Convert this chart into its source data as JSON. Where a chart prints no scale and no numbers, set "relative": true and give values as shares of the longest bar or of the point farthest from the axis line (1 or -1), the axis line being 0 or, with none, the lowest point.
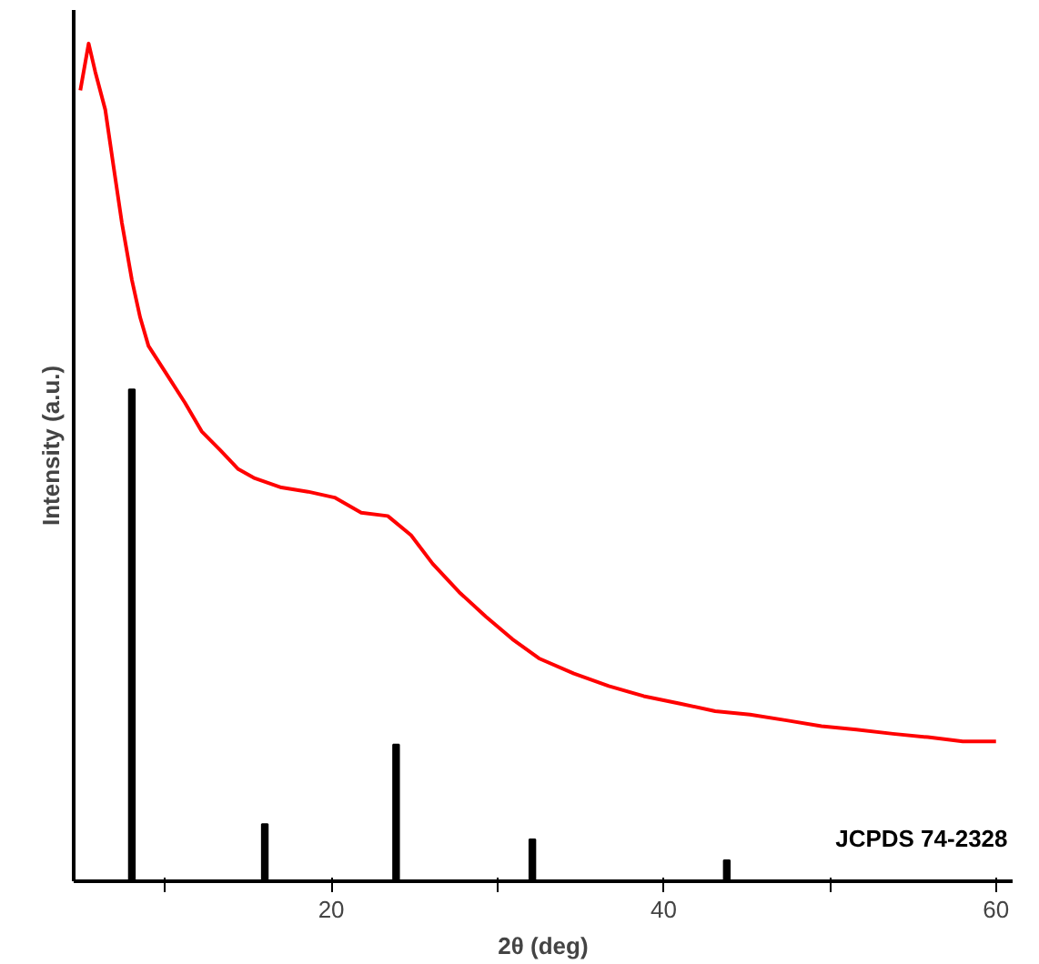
{
  "chart_data": {
    "type": "line",
    "xlabel": "2θ (deg)",
    "ylabel": "Intensity (a.u.)",
    "relative": true,
    "tick_labels": "x",
    "grid": false,
    "xlim": [
      4.5,
      61
    ],
    "xticks": [
      {
        "value": 10,
        "label": null
      },
      20,
      {
        "value": 30,
        "label": null
      },
      40,
      {
        "value": 50,
        "label": null
      },
      60
    ],
    "series": [
      {
        "color": "#ff0000",
        "x": [
          4.9,
          5.4,
          5.8,
          6.4,
          6.9,
          7.4,
          8.0,
          8.5,
          9.0,
          10.1,
          11.2,
          12.2,
          13.3,
          14.4,
          15.4,
          17.0,
          18.6,
          20.2,
          21.8,
          23.4,
          24.8,
          26.1,
          27.7,
          29.3,
          30.9,
          32.5,
          34.6,
          36.7,
          38.8,
          41.0,
          43.1,
          45.2,
          47.4,
          49.5,
          51.6,
          53.8,
          55.9,
          58.0,
          60.0
        ],
        "values": [
          0.944,
          1.0,
          0.966,
          0.921,
          0.853,
          0.786,
          0.718,
          0.673,
          0.639,
          0.605,
          0.571,
          0.537,
          0.515,
          0.492,
          0.481,
          0.47,
          0.465,
          0.458,
          0.44,
          0.436,
          0.413,
          0.379,
          0.345,
          0.316,
          0.289,
          0.266,
          0.248,
          0.233,
          0.221,
          0.212,
          0.203,
          0.199,
          0.192,
          0.185,
          0.181,
          0.176,
          0.172,
          0.167,
          0.167
        ]
      },
      {
        "type": "bar",
        "name": "JCPDS 74-2328",
        "color": "#000000",
        "x": [
          8.0,
          16.0,
          23.9,
          32.1,
          43.8
        ],
        "values": [
          0.587,
          0.068,
          0.163,
          0.05,
          0.025
        ]
      }
    ]
  }
}
